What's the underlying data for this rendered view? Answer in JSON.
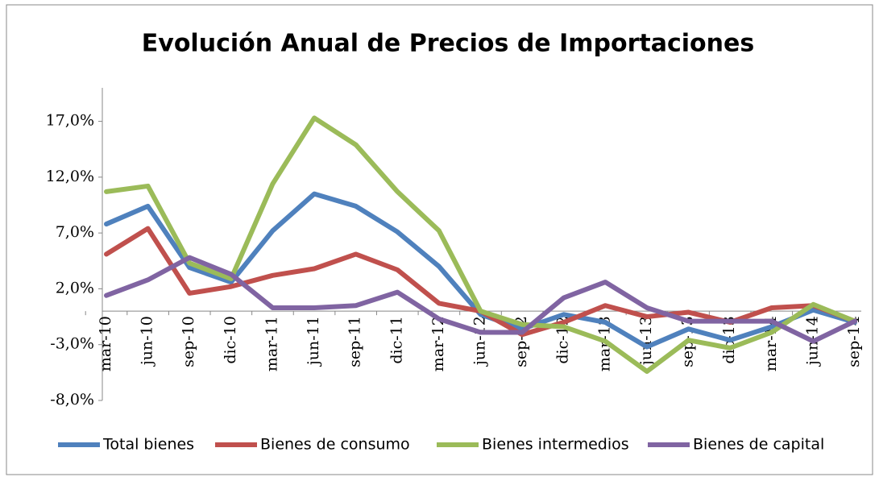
{
  "chart_data": {
    "type": "line",
    "title": "Evolución Anual de Precios de Importaciones",
    "categories": [
      "mar-10",
      "jun-10",
      "sep-10",
      "dic-10",
      "mar-11",
      "jun-11",
      "sep-11",
      "dic-11",
      "mar-12",
      "jun-12",
      "sep-12",
      "dic-12",
      "mar-13",
      "jun-13",
      "sep-13",
      "dic-13",
      "mar-14",
      "jun-14",
      "sep-14"
    ],
    "series": [
      {
        "name": "Total bienes",
        "color": "#4f81bd",
        "values": [
          7.8,
          9.4,
          3.9,
          2.6,
          7.2,
          10.5,
          9.4,
          7.1,
          4.0,
          -0.3,
          -1.6,
          -0.3,
          -1.0,
          -3.2,
          -1.6,
          -2.6,
          -1.4,
          0.1,
          -1.0
        ]
      },
      {
        "name": "Bienes de consumo",
        "color": "#c0504d",
        "values": [
          5.1,
          7.4,
          1.6,
          2.2,
          3.2,
          3.8,
          5.1,
          3.7,
          0.7,
          0,
          -2.1,
          -1.0,
          0.5,
          -0.5,
          -0.1,
          -1.0,
          0.3,
          0.5,
          -0.9
        ]
      },
      {
        "name": "Bienes intermedios",
        "color": "#9bbb59",
        "values": [
          10.7,
          11.2,
          4.3,
          2.9,
          11.4,
          17.3,
          14.9,
          10.7,
          7.2,
          0,
          -1.2,
          -1.4,
          -2.7,
          -5.4,
          -2.6,
          -3.3,
          -1.9,
          0.6,
          -0.9
        ]
      },
      {
        "name": "Bienes de capital",
        "color": "#8064a2",
        "values": [
          1.4,
          2.8,
          4.8,
          3.3,
          0.3,
          0.3,
          0.5,
          1.7,
          -0.7,
          -1.9,
          -1.9,
          1.2,
          2.6,
          0.3,
          -0.9,
          -0.9,
          -0.9,
          -2.7,
          -0.9
        ]
      }
    ],
    "ylim": [
      -8,
      20
    ],
    "yticks": [
      {
        "value": -8,
        "label": "-8,0%"
      },
      {
        "value": -3,
        "label": "-3,0%"
      },
      {
        "value": 2,
        "label": "2,0%"
      },
      {
        "value": 7,
        "label": "7,0%"
      },
      {
        "value": 12,
        "label": "12,0%"
      },
      {
        "value": 17,
        "label": "17,0%"
      }
    ],
    "legend": "bottom"
  }
}
